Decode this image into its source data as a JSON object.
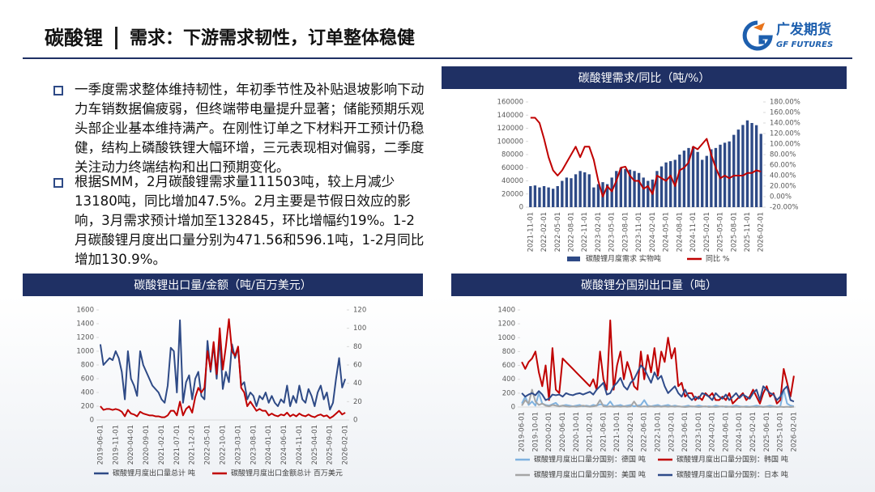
{
  "header": {
    "title": "碳酸锂",
    "subtitle": "需求：下游需求韧性，订单整体稳健",
    "logo_cn": "广发期货",
    "logo_en": "GF FUTURES"
  },
  "bullets": [
    "一季度需求整体维持韧性，年初季节性及补贴退坡影响下动力车销数据偏疲弱，但终端带电量提升显著；储能预期乐观头部企业基本维持满产。在刚性订单之下材料开工预计仍稳健，结构上磷酸铁锂大幅环增，三元表现相对偏弱，二季度关注动力终端结构和出口预期变化。",
    "根据SMM，2月碳酸锂需求量111503吨，较上月减少13180吨，同比增加47.5%。2月主要是节假日效应的影响，3月需求预计增加至132845，环比增幅约19%。1-2月碳酸锂月度出口量分别为471.56和596.1吨，1-2月同比增加130.9%。"
  ],
  "chart_data": [
    {
      "type": "combo",
      "title": "碳酸锂需求/同比（吨/%）",
      "grid": false,
      "categories": [
        "2021-11-01",
        null,
        null,
        "2022-02-01",
        null,
        null,
        "2022-05-01",
        null,
        null,
        "2022-08-01",
        null,
        null,
        "2022-11-01",
        null,
        null,
        "2023-02-01",
        null,
        null,
        "2023-05-01",
        null,
        null,
        "2023-08-01",
        null,
        null,
        "2023-11-01",
        null,
        null,
        "2024-02-01",
        null,
        null,
        "2024-05-01",
        null,
        null,
        "2024-08-01",
        null,
        null,
        "2024-11-01",
        null,
        null,
        "2025-02-01",
        null,
        null,
        "2025-05-01",
        null,
        null,
        "2025-08-01",
        null,
        null,
        "2025-11-01",
        null,
        null,
        "2026-02-01"
      ],
      "series": [
        {
          "name": "碳酸锂月度需求 实物吨",
          "type": "bar",
          "color": "#2e4a86",
          "values": [
            32000,
            33000,
            30000,
            32000,
            30000,
            28000,
            32000,
            40000,
            45000,
            44000,
            50000,
            55000,
            53000,
            50000,
            30000,
            35000,
            38000,
            35000,
            45000,
            55000,
            60000,
            58000,
            57000,
            55000,
            52000,
            45000,
            40000,
            42000,
            55000,
            62000,
            68000,
            70000,
            72000,
            80000,
            86000,
            90000,
            92000,
            84000,
            72000,
            78000,
            88000,
            90000,
            95000,
            98000,
            100000,
            110000,
            118000,
            125000,
            132000,
            128000,
            124683,
            111503
          ]
        },
        {
          "name": "同比 %",
          "type": "line",
          "axis": "y2",
          "color": "#c00000",
          "values": [
            150,
            150,
            140,
            110,
            75,
            50,
            40,
            50,
            65,
            80,
            95,
            75,
            95,
            95,
            70,
            30,
            0,
            20,
            10,
            30,
            55,
            57,
            40,
            30,
            30,
            15,
            20,
            5,
            40,
            35,
            30,
            40,
            20,
            50,
            55,
            65,
            95,
            90,
            100,
            110,
            80,
            55,
            35,
            40,
            35,
            40,
            40,
            40,
            45,
            45,
            50,
            47.5
          ]
        }
      ],
      "ylim": [
        0,
        160000
      ],
      "yticks": [
        0,
        20000,
        40000,
        60000,
        80000,
        100000,
        120000,
        140000,
        160000
      ],
      "y2lim": [
        -20,
        180
      ],
      "y2ticks": [
        {
          "value": -20,
          "label": "-20.00%"
        },
        {
          "value": 0,
          "label": "0.00%"
        },
        {
          "value": 20,
          "label": "20.00%"
        },
        {
          "value": 40,
          "label": "40.00%"
        },
        {
          "value": 60,
          "label": "60.00%"
        },
        {
          "value": 80,
          "label": "80.00%"
        },
        {
          "value": 100,
          "label": "100.00%"
        },
        {
          "value": 120,
          "label": "120.00%"
        },
        {
          "value": 140,
          "label": "140.00%"
        },
        {
          "value": 160,
          "label": "160.00%"
        },
        {
          "value": 180,
          "label": "180.00%"
        }
      ]
    },
    {
      "type": "line",
      "title": "碳酸锂出口量/金额（吨/百万美元）",
      "grid": false,
      "categories": [
        "2019-06-01",
        null,
        null,
        null,
        null,
        "2019-11-01",
        null,
        null,
        null,
        null,
        "2020-04-01",
        null,
        null,
        null,
        null,
        "2020-09-01",
        null,
        null,
        null,
        null,
        "2021-02-01",
        null,
        null,
        null,
        null,
        "2021-07-01",
        null,
        null,
        null,
        null,
        "2021-12-01",
        null,
        null,
        null,
        null,
        "2022-05-01",
        null,
        null,
        null,
        null,
        "2022-10-01",
        null,
        null,
        null,
        null,
        "2023-03-01",
        null,
        null,
        null,
        null,
        "2023-08-01",
        null,
        null,
        null,
        null,
        "2024-01-01",
        null,
        null,
        null,
        null,
        "2024-06-01",
        null,
        null,
        null,
        null,
        "2024-11-01",
        null,
        null,
        null,
        null,
        "2025-04-01",
        null,
        null,
        null,
        null,
        "2025-09-01",
        null,
        null,
        null,
        null,
        "2026-02-01"
      ],
      "series": [
        {
          "name": "碳酸锂月度出口量总计 吨",
          "color": "#2e4a86",
          "values": [
            1100,
            800,
            850,
            900,
            870,
            1000,
            900,
            700,
            300,
            1000,
            600,
            500,
            350,
            1000,
            800,
            700,
            600,
            500,
            450,
            400,
            300,
            250,
            500,
            1050,
            1000,
            400,
            1450,
            250,
            550,
            650,
            300,
            600,
            700,
            350,
            300,
            1150,
            700,
            1100,
            600,
            1200,
            450,
            700,
            550,
            1100,
            900,
            1050,
            500,
            550,
            300,
            400,
            350,
            200,
            350,
            300,
            400,
            250,
            350,
            250,
            200,
            300,
            250,
            500,
            200,
            350,
            250,
            500,
            300,
            250,
            450,
            350,
            200,
            400,
            500,
            300,
            400,
            150,
            250,
            600,
            900,
            471.56,
            596.1
          ]
        },
        {
          "name": "碳酸锂月度出口金额总计 百万美元",
          "axis": "y2",
          "color": "#c00000",
          "values": [
            15,
            11,
            12,
            12,
            11,
            12,
            11,
            9,
            4,
            11,
            7,
            6,
            4,
            9,
            7,
            6,
            5,
            5,
            4,
            4,
            3,
            3,
            5,
            10,
            10,
            5,
            20,
            5,
            12,
            15,
            8,
            25,
            35,
            30,
            35,
            75,
            55,
            85,
            50,
            100,
            55,
            80,
            110,
            75,
            70,
            80,
            35,
            30,
            15,
            20,
            15,
            10,
            12,
            10,
            10,
            5,
            7,
            5,
            4,
            6,
            5,
            8,
            4,
            6,
            4,
            7,
            5,
            4,
            6,
            4,
            3,
            5,
            6,
            4,
            5,
            2,
            4,
            7,
            10,
            6,
            8
          ]
        }
      ],
      "ylim": [
        0,
        1600
      ],
      "yticks": [
        0,
        200,
        400,
        600,
        800,
        1000,
        1200,
        1400,
        1600
      ],
      "y2lim": [
        0,
        120
      ],
      "y2ticks": [
        0,
        20,
        40,
        60,
        80,
        100,
        120
      ]
    },
    {
      "type": "line",
      "title": "碳酸锂分国别出口量（吨）",
      "grid": false,
      "categories": [
        "2019-06-01",
        null,
        null,
        null,
        "2019-10-01",
        null,
        null,
        null,
        "2020-02-01",
        null,
        null,
        null,
        "2020-06-01",
        null,
        null,
        null,
        "2020-10-01",
        null,
        null,
        null,
        "2021-02-01",
        null,
        null,
        null,
        "2021-06-01",
        null,
        null,
        null,
        "2021-10-01",
        null,
        null,
        null,
        "2022-02-01",
        null,
        null,
        null,
        "2022-06-01",
        null,
        null,
        null,
        "2022-10-01",
        null,
        null,
        null,
        "2023-02-01",
        null,
        null,
        null,
        "2023-06-01",
        null,
        null,
        null,
        "2023-10-01",
        null,
        null,
        null,
        "2024-02-01",
        null,
        null,
        null,
        "2024-06-01",
        null,
        null,
        null,
        "2024-10-01",
        null,
        null,
        null,
        "2025-02-01",
        null,
        null,
        null,
        "2025-06-01",
        null,
        null,
        null,
        "2025-10-01",
        null,
        null,
        null,
        "2026-02-01"
      ],
      "series": [
        {
          "name": "碳酸锂月度出口量分国别：德国 吨",
          "color": "#7fb2e0",
          "values": [
            50,
            150,
            30,
            80,
            20,
            200,
            50,
            30,
            20,
            40,
            60,
            10,
            20,
            30,
            20,
            10,
            20,
            30,
            10,
            20,
            10,
            30,
            20,
            40,
            30,
            20,
            80,
            10,
            20,
            30,
            10,
            20,
            30,
            10,
            20,
            30,
            100,
            20,
            10,
            20,
            30,
            10,
            20,
            30,
            10,
            20,
            10,
            5,
            10,
            20,
            5,
            10,
            20,
            10,
            5,
            10,
            5,
            20,
            10,
            5,
            10,
            5,
            10,
            20,
            10,
            5,
            10,
            5,
            10,
            20,
            10,
            5,
            10,
            20,
            10,
            5,
            10,
            250,
            50,
            20,
            10
          ]
        },
        {
          "name": "碳酸锂月度出口量分国别：韩国 吨",
          "color": "#c00000",
          "values": [
            650,
            550,
            650,
            700,
            800,
            500,
            300,
            600,
            100,
            850,
            250,
            200,
            700,
            650,
            600,
            550,
            500,
            450,
            400,
            350,
            300,
            400,
            250,
            800,
            400,
            250,
            1250,
            250,
            600,
            800,
            400,
            650,
            500,
            300,
            250,
            800,
            400,
            750,
            500,
            850,
            450,
            800,
            650,
            1000,
            700,
            850,
            300,
            350,
            150,
            200,
            200,
            100,
            150,
            100,
            200,
            150,
            200,
            100,
            100,
            150,
            100,
            200,
            50,
            100,
            150,
            200,
            100,
            150,
            250,
            150,
            50,
            200,
            300,
            150,
            200,
            50,
            100,
            550,
            350,
            150,
            450
          ]
        },
        {
          "name": "碳酸锂月度出口量分国别：美国 吨",
          "color": "#a5a5a5",
          "values": [
            20,
            100,
            50,
            250,
            80,
            30,
            50,
            20,
            10,
            30,
            20,
            10,
            20,
            10,
            5,
            10,
            5,
            10,
            20,
            10,
            5,
            10,
            20,
            100,
            10,
            5,
            10,
            5,
            10,
            5,
            10,
            5,
            10,
            80,
            10,
            5,
            10,
            5,
            10,
            5,
            10,
            5,
            10,
            5,
            10,
            5,
            10,
            5,
            0,
            5,
            10,
            5,
            0,
            5,
            10,
            0,
            5,
            0,
            5,
            10,
            0,
            5,
            0,
            5,
            0,
            5,
            0,
            0,
            5,
            0,
            5,
            0,
            5,
            0,
            5,
            0,
            5,
            0,
            5,
            0,
            5
          ]
        },
        {
          "name": "碳酸锂月度出口量分国别：日本 吨",
          "color": "#2f4b8a",
          "values": [
            200,
            150,
            180,
            200,
            170,
            230,
            180,
            100,
            120,
            180,
            170,
            180,
            150,
            200,
            180,
            170,
            190,
            200,
            180,
            200,
            220,
            180,
            250,
            300,
            350,
            180,
            200,
            300,
            350,
            420,
            300,
            250,
            350,
            400,
            500,
            600,
            550,
            450,
            350,
            500,
            400,
            450,
            300,
            200,
            250,
            300,
            200,
            150,
            250,
            150,
            100,
            150,
            120,
            200,
            180,
            150,
            100,
            200,
            150,
            120,
            180,
            100,
            150,
            200,
            130,
            180,
            150,
            120,
            200,
            250,
            100,
            300,
            250,
            200,
            180,
            100,
            150,
            250,
            300,
            100,
            80
          ]
        }
      ],
      "ylim": [
        0,
        1400
      ],
      "yticks": [
        0,
        200,
        400,
        600,
        800,
        1000,
        1200,
        1400
      ]
    }
  ]
}
